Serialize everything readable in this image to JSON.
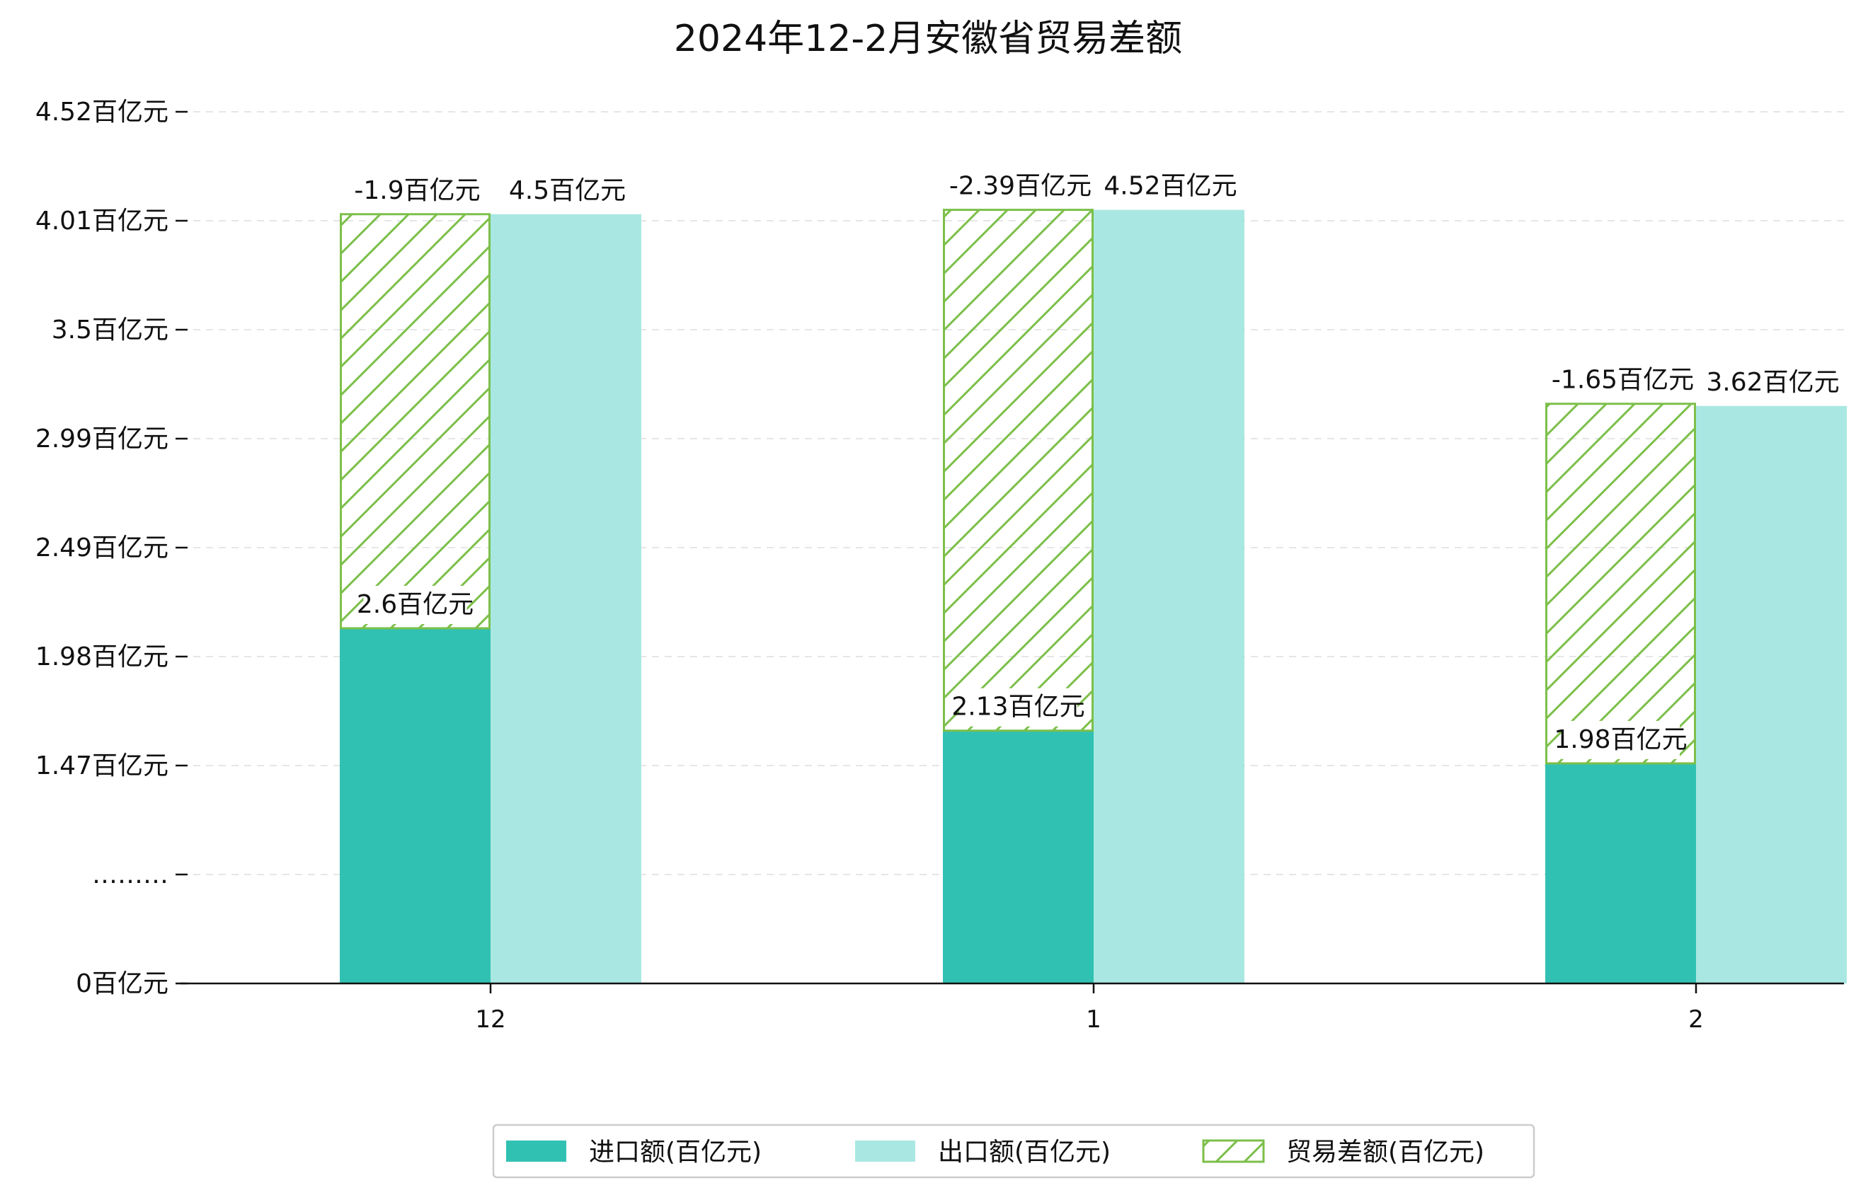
{
  "chart_data": {
    "type": "bar",
    "title": "2024年12-2月安徽省贸易差额",
    "categories": [
      "12",
      "1",
      "2"
    ],
    "series": [
      {
        "name": "进口额(百亿元)",
        "values": [
          2.6,
          2.13,
          1.98
        ],
        "labels": [
          "2.6百亿元",
          "2.13百亿元",
          "1.98百亿元"
        ],
        "color": "#31c1b3"
      },
      {
        "name": "出口额(百亿元)",
        "values": [
          4.5,
          4.52,
          3.62
        ],
        "labels": [
          "4.5百亿元",
          "4.52百亿元",
          "3.62百亿元"
        ],
        "color": "#a9e8e2"
      },
      {
        "name": "贸易差额(百亿元)",
        "values": [
          -1.9,
          -2.39,
          -1.65
        ],
        "labels": [
          "-1.9百亿元",
          "-2.39百亿元",
          "-1.65百亿元"
        ],
        "color": "#7cbf4a",
        "pattern": "hatch"
      }
    ],
    "y_ticks": [
      {
        "value": 0,
        "label": "0百亿元"
      },
      {
        "value": 0.5,
        "label": "………"
      },
      {
        "value": 1.0,
        "label": "1.47百亿元"
      },
      {
        "value": 1.5,
        "label": "1.98百亿元"
      },
      {
        "value": 2.0,
        "label": "2.49百亿元"
      },
      {
        "value": 2.5,
        "label": "2.99百亿元"
      },
      {
        "value": 3.0,
        "label": "3.5百亿元"
      },
      {
        "value": 3.5,
        "label": "4.01百亿元"
      },
      {
        "value": 4.0,
        "label": "4.52百亿元"
      }
    ],
    "y_axis_break": true,
    "grid": true,
    "legend": "bottom-center"
  }
}
